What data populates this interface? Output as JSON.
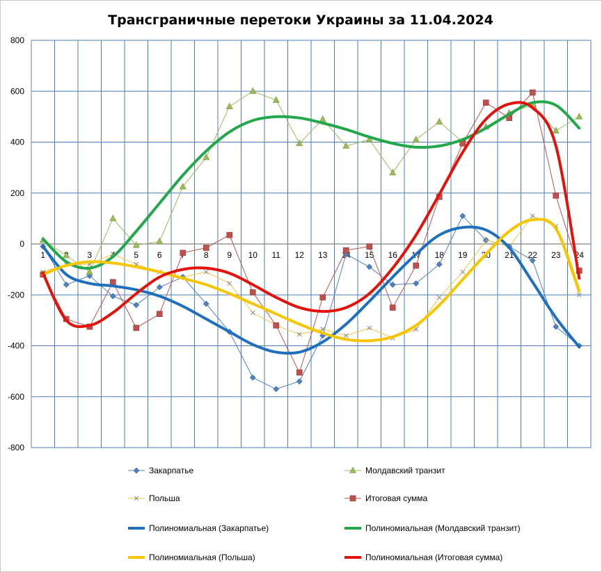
{
  "chart_data": {
    "type": "line",
    "title": "Трансграничные перетоки Украины за 11.04.2024",
    "xlabel": "",
    "ylabel": "",
    "ylim": [
      -800,
      800
    ],
    "yticks": [
      800,
      600,
      400,
      200,
      0,
      -200,
      -400,
      -600,
      -800
    ],
    "grid": true,
    "legend_position": "bottom",
    "categories": [
      "1",
      "2",
      "3",
      "4",
      "5",
      "6",
      "7",
      "8",
      "9",
      "10",
      "11",
      "12",
      "13",
      "14",
      "15",
      "16",
      "17",
      "18",
      "19",
      "20",
      "21",
      "22",
      "23",
      "24"
    ],
    "series": [
      {
        "name": "Закарпатье",
        "color": "#4f81bd",
        "marker": "diamond",
        "values": [
          -10,
          -160,
          -125,
          -205,
          -240,
          -170,
          -130,
          -235,
          -345,
          -525,
          -570,
          -540,
          -360,
          -40,
          -90,
          -160,
          -155,
          -80,
          110,
          15,
          -10,
          -65,
          -325,
          -400
        ]
      },
      {
        "name": "Молдавский транзит",
        "color": "#9bbb59",
        "marker": "triangle",
        "values": [
          15,
          -45,
          -110,
          100,
          -5,
          10,
          225,
          340,
          540,
          600,
          565,
          395,
          490,
          385,
          410,
          280,
          410,
          480,
          400,
          460,
          515,
          545,
          445,
          500
        ]
      },
      {
        "name": "Польша",
        "color": "#f2c545",
        "marker": "x",
        "values": [
          -110,
          -80,
          -80,
          -40,
          -80,
          -110,
          -130,
          -110,
          -155,
          -270,
          -320,
          -355,
          -335,
          -360,
          -330,
          -370,
          -335,
          -210,
          -110,
          15,
          -10,
          110,
          70,
          -200
        ]
      },
      {
        "name": "Итоговая сумма",
        "color": "#c0504d",
        "marker": "square",
        "values": [
          -120,
          -295,
          -325,
          -150,
          -330,
          -275,
          -35,
          -15,
          35,
          -190,
          -320,
          -505,
          -210,
          -25,
          -10,
          -250,
          -85,
          185,
          395,
          555,
          495,
          595,
          190,
          -105
        ]
      },
      {
        "name": "Полиномиальная (Закарпатье)",
        "color": "#1f6fbf",
        "trend": true,
        "values": [
          -10,
          -120,
          -155,
          -165,
          -180,
          -205,
          -245,
          -295,
          -345,
          -395,
          -425,
          -425,
          -385,
          -315,
          -225,
          -130,
          -40,
          35,
          65,
          55,
          -15,
          -150,
          -290,
          -405
        ]
      },
      {
        "name": "Полиномиальная (Молдавский транзит)",
        "color": "#22a84a",
        "trend": true,
        "values": [
          20,
          -70,
          -95,
          -50,
          50,
          160,
          270,
          365,
          440,
          485,
          500,
          495,
          475,
          450,
          420,
          395,
          380,
          385,
          410,
          455,
          510,
          555,
          545,
          455
        ]
      },
      {
        "name": "Полиномиальная (Польша)",
        "color": "#f7c600",
        "trend": true,
        "values": [
          -120,
          -85,
          -70,
          -75,
          -90,
          -110,
          -135,
          -160,
          -195,
          -235,
          -275,
          -315,
          -350,
          -375,
          -380,
          -365,
          -320,
          -240,
          -140,
          -40,
          50,
          95,
          60,
          -185
        ]
      },
      {
        "name": "Полиномиальная (Итоговая сумма)",
        "color": "#e3120b",
        "trend": true,
        "values": [
          -115,
          -300,
          -320,
          -270,
          -195,
          -130,
          -100,
          -95,
          -115,
          -160,
          -210,
          -250,
          -265,
          -250,
          -195,
          -95,
          35,
          195,
          360,
          490,
          550,
          535,
          385,
          -135
        ]
      }
    ]
  }
}
